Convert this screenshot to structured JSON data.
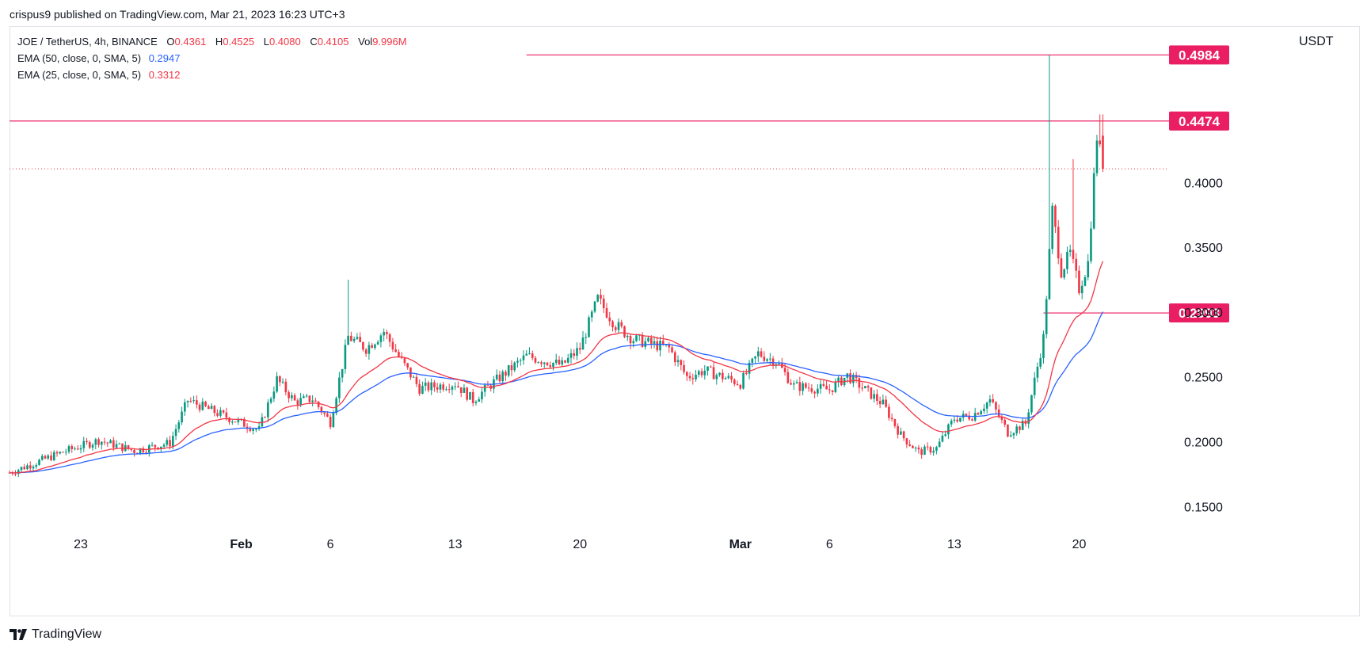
{
  "header": {
    "publisher_line": "crispus9 published on TradingView.com, Mar 21, 2023 16:23 UTC+3"
  },
  "legend": {
    "symbol": "JOE / TetherUS, 4h, BINANCE",
    "ohlc": [
      {
        "key": "O",
        "value": "0.4361"
      },
      {
        "key": "H",
        "value": "0.4525"
      },
      {
        "key": "L",
        "value": "0.4080"
      },
      {
        "key": "C",
        "value": "0.4105"
      },
      {
        "key": "Vol",
        "value": "9.996M"
      }
    ],
    "ema50": {
      "label": "EMA (50, close, 0, SMA, 5)",
      "value": "0.2947",
      "color": "#2962ff"
    },
    "ema25": {
      "label": "EMA (25, close, 0, SMA, 5)",
      "value": "0.3312",
      "color": "#f23645"
    }
  },
  "footer": {
    "brand": "TradingView"
  },
  "chart_data": {
    "type": "candlestick",
    "instrument": "JOE / TetherUS",
    "interval": "4h",
    "exchange": "BINANCE",
    "yaxis_unit": "USDT",
    "ylim": [
      0.13,
      0.52
    ],
    "y_ticks": [
      0.15,
      0.2,
      0.25,
      0.3,
      0.35,
      0.4
    ],
    "y_tick_labels": [
      "0.1500",
      "0.2000",
      "0.2500",
      "0.3000",
      "0.3500",
      "0.4000"
    ],
    "x_ticks": [
      {
        "label": "23",
        "date": "2023-01-23"
      },
      {
        "label": "Feb",
        "date": "2023-02-01"
      },
      {
        "label": "6",
        "date": "2023-02-06"
      },
      {
        "label": "13",
        "date": "2023-02-13"
      },
      {
        "label": "20",
        "date": "2023-02-20"
      },
      {
        "label": "Mar",
        "date": "2023-03-01"
      },
      {
        "label": "6",
        "date": "2023-03-06"
      },
      {
        "label": "13",
        "date": "2023-03-13"
      },
      {
        "label": "20",
        "date": "2023-03-20"
      }
    ],
    "xlim": [
      "2023-01-19",
      "2023-03-25"
    ],
    "horizontal_lines": [
      {
        "value": 0.4984,
        "label": "0.4984",
        "from": "2023-02-17",
        "color": "#e91e63"
      },
      {
        "value": 0.4474,
        "label": "0.4474",
        "from": "2023-01-19",
        "color": "#e91e63"
      },
      {
        "value": 0.2993,
        "label": "0.2993",
        "from": "2023-03-18",
        "color": "#e91e63"
      }
    ],
    "last_price_line": {
      "value": 0.4105,
      "color": "#f23645",
      "style": "dotted"
    },
    "anchors": [
      {
        "date": "2023-01-19",
        "close": 0.176
      },
      {
        "date": "2023-01-22",
        "close": 0.192
      },
      {
        "date": "2023-01-24",
        "close": 0.201
      },
      {
        "date": "2023-01-26",
        "close": 0.193
      },
      {
        "date": "2023-01-28",
        "close": 0.199
      },
      {
        "date": "2023-01-29",
        "close": 0.232
      },
      {
        "date": "2023-01-31",
        "close": 0.22
      },
      {
        "date": "2023-02-02",
        "close": 0.209
      },
      {
        "date": "2023-02-03",
        "close": 0.248
      },
      {
        "date": "2023-02-04",
        "close": 0.231
      },
      {
        "date": "2023-02-05",
        "close": 0.233
      },
      {
        "date": "2023-02-06",
        "close": 0.215
      },
      {
        "date": "2023-02-07",
        "close": 0.281
      },
      {
        "date": "2023-02-08",
        "close": 0.272
      },
      {
        "date": "2023-02-09",
        "close": 0.285
      },
      {
        "date": "2023-02-10",
        "close": 0.262
      },
      {
        "date": "2023-02-11",
        "close": 0.241
      },
      {
        "date": "2023-02-13",
        "close": 0.245
      },
      {
        "date": "2023-02-14",
        "close": 0.232
      },
      {
        "date": "2023-02-15",
        "close": 0.244
      },
      {
        "date": "2023-02-17",
        "close": 0.266
      },
      {
        "date": "2023-02-19",
        "close": 0.259
      },
      {
        "date": "2023-02-20",
        "close": 0.272
      },
      {
        "date": "2023-02-21",
        "close": 0.31
      },
      {
        "date": "2023-02-22",
        "close": 0.29
      },
      {
        "date": "2023-02-23",
        "close": 0.279
      },
      {
        "date": "2023-02-25",
        "close": 0.272
      },
      {
        "date": "2023-02-26",
        "close": 0.25
      },
      {
        "date": "2023-02-27",
        "close": 0.255
      },
      {
        "date": "2023-03-01",
        "close": 0.245
      },
      {
        "date": "2023-03-02",
        "close": 0.268
      },
      {
        "date": "2023-03-03",
        "close": 0.262
      },
      {
        "date": "2023-03-04",
        "close": 0.243
      },
      {
        "date": "2023-03-06",
        "close": 0.24
      },
      {
        "date": "2023-03-07",
        "close": 0.251
      },
      {
        "date": "2023-03-09",
        "close": 0.229
      },
      {
        "date": "2023-03-10",
        "close": 0.205
      },
      {
        "date": "2023-03-11",
        "close": 0.192
      },
      {
        "date": "2023-03-12",
        "close": 0.195
      },
      {
        "date": "2023-03-13",
        "close": 0.218
      },
      {
        "date": "2023-03-14",
        "close": 0.22
      },
      {
        "date": "2023-03-15",
        "close": 0.232
      },
      {
        "date": "2023-03-16",
        "close": 0.207
      },
      {
        "date": "2023-03-17",
        "close": 0.214
      },
      {
        "date": "2023-03-18",
        "close": 0.28
      },
      {
        "date": "2023-03-18T12:00",
        "close": 0.378
      },
      {
        "date": "2023-03-19",
        "close": 0.332
      },
      {
        "date": "2023-03-19T12:00",
        "close": 0.345
      },
      {
        "date": "2023-03-20",
        "close": 0.318
      },
      {
        "date": "2023-03-20T12:00",
        "close": 0.338
      },
      {
        "date": "2023-03-21",
        "close": 0.436
      },
      {
        "date": "2023-03-21T08:00",
        "close": 0.4105
      }
    ],
    "notable_wicks": [
      {
        "date": "2023-02-07",
        "high": 0.325
      },
      {
        "date": "2023-03-18T08:00",
        "high": 0.4984
      },
      {
        "date": "2023-03-19T16:00",
        "high": 0.418
      },
      {
        "date": "2023-03-21T04:00",
        "high": 0.4525
      }
    ],
    "last_candle": {
      "date": "2023-03-21T08:00",
      "open": 0.4361,
      "high": 0.4525,
      "low": 0.408,
      "close": 0.4105
    },
    "ema_50_last": 0.2947,
    "ema_25_last": 0.3312,
    "grid": false,
    "legend_position": "top-left",
    "colors": {
      "up": "#089981",
      "down": "#f23645",
      "ema50": "#2962ff",
      "ema25": "#f23645",
      "level": "#e91e63"
    }
  }
}
